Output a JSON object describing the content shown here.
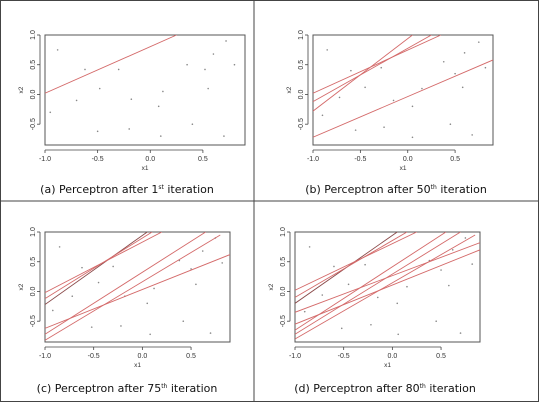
{
  "chart_data": [
    {
      "type": "line",
      "panel": "(a)",
      "caption": {
        "main": "Perceptron after 1",
        "sup": "st",
        "rest": " iteration"
      },
      "xlabel": "x1",
      "ylabel": "x2",
      "xlim": [
        -1.0,
        0.9
      ],
      "ylim": [
        -0.85,
        1.0
      ],
      "xticks": [
        -1.0,
        -0.5,
        0.0,
        0.5
      ],
      "xticklabels": [
        "-1.0",
        "-0.5",
        "0.0",
        "0.5"
      ],
      "yticks": [
        -0.5,
        0.0,
        0.5,
        1.0
      ],
      "yticklabels": [
        "-0.5",
        "0.0",
        "0.5",
        "1.0"
      ],
      "lines": [
        {
          "x": [
            -1.0,
            0.25
          ],
          "y": [
            0.02,
            1.0
          ],
          "color": "#d46a6a"
        }
      ],
      "points": [
        [
          -0.88,
          0.75
        ],
        [
          -0.62,
          0.42
        ],
        [
          -0.48,
          0.1
        ],
        [
          -0.3,
          0.42
        ],
        [
          -0.18,
          -0.08
        ],
        [
          0.08,
          -0.2
        ],
        [
          0.12,
          0.05
        ],
        [
          0.35,
          0.5
        ],
        [
          0.52,
          0.42
        ],
        [
          0.6,
          0.68
        ],
        [
          0.72,
          0.9
        ],
        [
          0.8,
          0.5
        ],
        [
          -0.95,
          -0.3
        ],
        [
          -0.5,
          -0.62
        ],
        [
          -0.2,
          -0.58
        ],
        [
          0.1,
          -0.7
        ],
        [
          0.4,
          -0.5
        ],
        [
          0.7,
          -0.7
        ],
        [
          -0.7,
          -0.1
        ],
        [
          0.55,
          0.1
        ]
      ]
    },
    {
      "type": "line",
      "panel": "(b)",
      "caption": {
        "main": "Perceptron after 50",
        "sup": "th",
        "rest": " iteration"
      },
      "xlabel": "x1",
      "ylabel": "x2",
      "xlim": [
        -1.0,
        0.9
      ],
      "ylim": [
        -0.85,
        1.0
      ],
      "xticks": [
        -1.0,
        -0.5,
        0.0,
        0.5
      ],
      "xticklabels": [
        "-1.0",
        "-0.5",
        "0.0",
        "0.5"
      ],
      "yticks": [
        -0.5,
        0.0,
        0.5,
        1.0
      ],
      "yticklabels": [
        "-0.5",
        "0.0",
        "0.5",
        "1.0"
      ],
      "lines": [
        {
          "x": [
            -1.0,
            0.05
          ],
          "y": [
            -0.28,
            1.0
          ],
          "color": "#d46a6a"
        },
        {
          "x": [
            -1.0,
            0.25
          ],
          "y": [
            -0.12,
            1.0
          ],
          "color": "#d46a6a"
        },
        {
          "x": [
            -1.0,
            0.35
          ],
          "y": [
            0.02,
            1.0
          ],
          "color": "#d46a6a"
        },
        {
          "x": [
            -1.0,
            0.9
          ],
          "y": [
            -0.72,
            0.58
          ],
          "color": "#d46a6a"
        }
      ],
      "points": [
        [
          -0.85,
          0.75
        ],
        [
          -0.6,
          0.4
        ],
        [
          -0.45,
          0.12
        ],
        [
          -0.28,
          0.45
        ],
        [
          -0.15,
          -0.1
        ],
        [
          0.05,
          -0.2
        ],
        [
          0.15,
          0.1
        ],
        [
          0.38,
          0.55
        ],
        [
          0.5,
          0.35
        ],
        [
          0.6,
          0.7
        ],
        [
          0.75,
          0.88
        ],
        [
          0.82,
          0.45
        ],
        [
          -0.9,
          -0.35
        ],
        [
          -0.55,
          -0.6
        ],
        [
          -0.25,
          -0.55
        ],
        [
          0.05,
          -0.72
        ],
        [
          0.45,
          -0.5
        ],
        [
          0.68,
          -0.68
        ],
        [
          -0.72,
          -0.05
        ],
        [
          0.58,
          0.12
        ]
      ]
    },
    {
      "type": "line",
      "panel": "(c)",
      "caption": {
        "main": "Perceptron after 75",
        "sup": "th",
        "rest": " iteration"
      },
      "xlabel": "x1",
      "ylabel": "x2",
      "xlim": [
        -1.0,
        0.9
      ],
      "ylim": [
        -0.85,
        1.0
      ],
      "xticks": [
        -1.0,
        -0.5,
        0.0,
        0.5
      ],
      "xticklabels": [
        "-1.0",
        "-0.5",
        "0.0",
        "0.5"
      ],
      "yticks": [
        -0.5,
        0.0,
        0.5,
        1.0
      ],
      "yticklabels": [
        "-0.5",
        "0.0",
        "0.5",
        "1.0"
      ],
      "lines": [
        {
          "x": [
            -1.0,
            0.05
          ],
          "y": [
            -0.22,
            1.0
          ],
          "color": "#8a4a4a"
        },
        {
          "x": [
            -1.0,
            0.1
          ],
          "y": [
            -0.12,
            1.0
          ],
          "color": "#d46a6a"
        },
        {
          "x": [
            -1.0,
            0.2
          ],
          "y": [
            -0.02,
            1.0
          ],
          "color": "#d46a6a"
        },
        {
          "x": [
            -1.0,
            0.65
          ],
          "y": [
            -0.72,
            1.0
          ],
          "color": "#d46a6a"
        },
        {
          "x": [
            -1.0,
            0.8
          ],
          "y": [
            -0.82,
            0.95
          ],
          "color": "#d46a6a"
        },
        {
          "x": [
            -1.0,
            0.9
          ],
          "y": [
            -0.62,
            0.62
          ],
          "color": "#d46a6a"
        }
      ],
      "points": [
        [
          -0.85,
          0.75
        ],
        [
          -0.62,
          0.4
        ],
        [
          -0.45,
          0.15
        ],
        [
          -0.3,
          0.42
        ],
        [
          -0.18,
          -0.08
        ],
        [
          0.05,
          -0.2
        ],
        [
          0.12,
          0.05
        ],
        [
          0.38,
          0.52
        ],
        [
          0.5,
          0.38
        ],
        [
          0.62,
          0.68
        ],
        [
          0.75,
          0.9
        ],
        [
          0.82,
          0.48
        ],
        [
          -0.92,
          -0.32
        ],
        [
          -0.52,
          -0.6
        ],
        [
          -0.22,
          -0.58
        ],
        [
          0.08,
          -0.72
        ],
        [
          0.42,
          -0.5
        ],
        [
          0.7,
          -0.7
        ],
        [
          -0.72,
          -0.08
        ],
        [
          0.55,
          0.12
        ]
      ]
    },
    {
      "type": "line",
      "panel": "(d)",
      "caption": {
        "main": "Perceptron after 80",
        "sup": "th",
        "rest": " iteration"
      },
      "xlabel": "x1",
      "ylabel": "x2",
      "xlim": [
        -1.0,
        0.9
      ],
      "ylim": [
        -0.85,
        1.0
      ],
      "xticks": [
        -1.0,
        -0.5,
        0.0,
        0.5
      ],
      "xticklabels": [
        "-1.0",
        "-0.5",
        "0.0",
        "0.5"
      ],
      "yticks": [
        -0.5,
        0.0,
        0.5,
        1.0
      ],
      "yticklabels": [
        "-0.5",
        "0.0",
        "0.5",
        "1.0"
      ],
      "lines": [
        {
          "x": [
            -1.0,
            0.05
          ],
          "y": [
            -0.2,
            1.0
          ],
          "color": "#8a4a4a"
        },
        {
          "x": [
            -1.0,
            0.15
          ],
          "y": [
            -0.1,
            1.0
          ],
          "color": "#d46a6a"
        },
        {
          "x": [
            -1.0,
            0.25
          ],
          "y": [
            0.02,
            1.0
          ],
          "color": "#d46a6a"
        },
        {
          "x": [
            -1.0,
            0.55
          ],
          "y": [
            -0.65,
            1.0
          ],
          "color": "#d46a6a"
        },
        {
          "x": [
            -1.0,
            0.7
          ],
          "y": [
            -0.72,
            1.0
          ],
          "color": "#d46a6a"
        },
        {
          "x": [
            -1.0,
            0.85
          ],
          "y": [
            -0.8,
            0.95
          ],
          "color": "#d46a6a"
        },
        {
          "x": [
            -1.0,
            0.9
          ],
          "y": [
            -0.55,
            0.7
          ],
          "color": "#d46a6a"
        },
        {
          "x": [
            -1.0,
            0.9
          ],
          "y": [
            -0.35,
            0.82
          ],
          "color": "#d46a6a"
        }
      ],
      "points": [
        [
          -0.85,
          0.75
        ],
        [
          -0.6,
          0.42
        ],
        [
          -0.45,
          0.12
        ],
        [
          -0.28,
          0.45
        ],
        [
          -0.15,
          -0.1
        ],
        [
          0.05,
          -0.2
        ],
        [
          0.15,
          0.08
        ],
        [
          0.38,
          0.52
        ],
        [
          0.5,
          0.36
        ],
        [
          0.62,
          0.7
        ],
        [
          0.75,
          0.9
        ],
        [
          0.82,
          0.46
        ],
        [
          -0.9,
          -0.34
        ],
        [
          -0.52,
          -0.62
        ],
        [
          -0.22,
          -0.56
        ],
        [
          0.06,
          -0.72
        ],
        [
          0.45,
          -0.5
        ],
        [
          0.7,
          -0.7
        ],
        [
          -0.72,
          -0.06
        ],
        [
          0.58,
          0.1
        ]
      ]
    }
  ]
}
